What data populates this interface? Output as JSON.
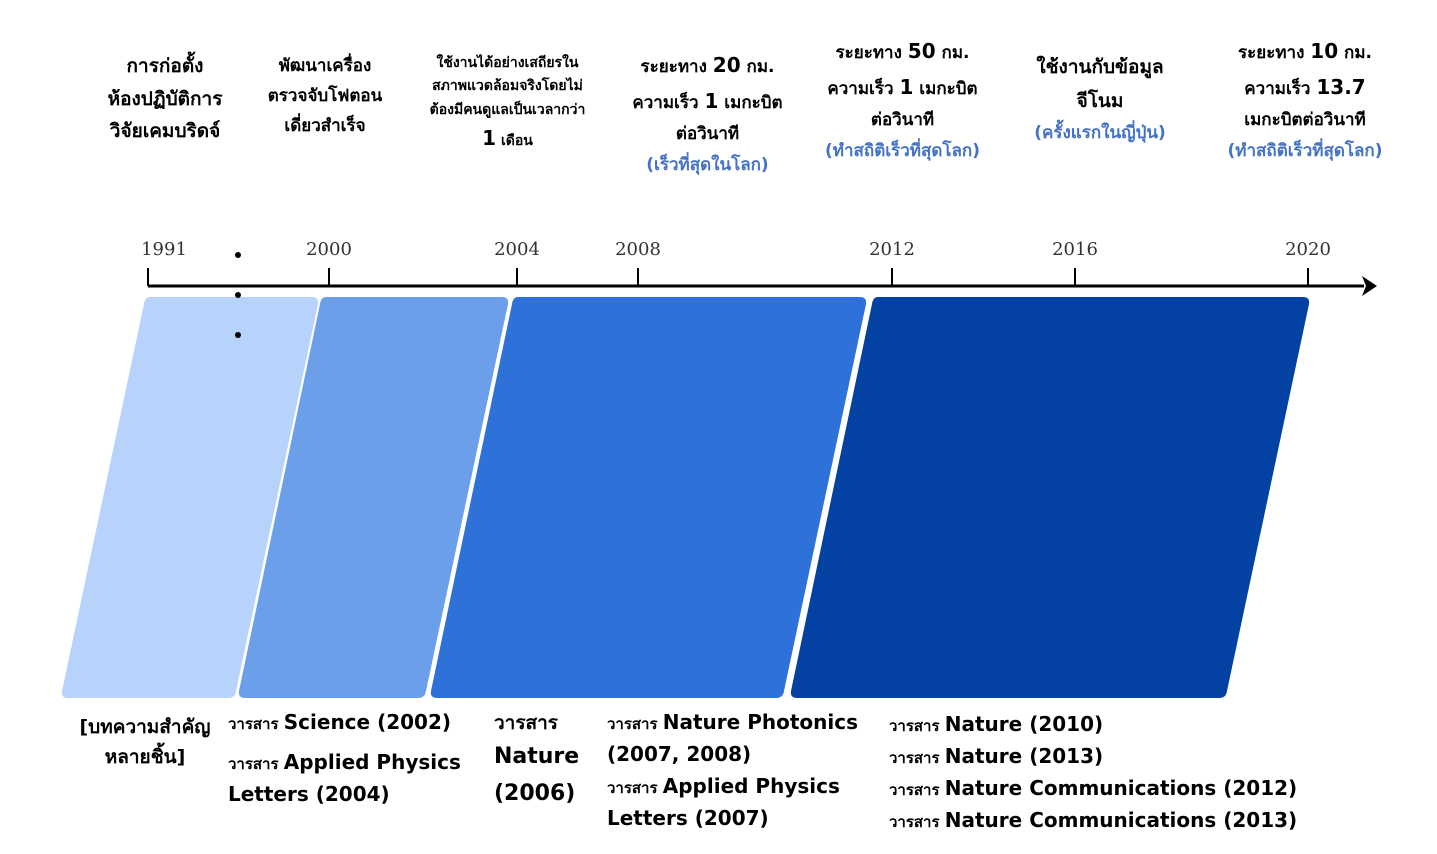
{
  "milestones": [
    {
      "lines": [
        "การก่อตั้ง",
        "ห้องปฏิบัติการ",
        "วิจัยเคมบริดจ์"
      ]
    },
    {
      "lines": [
        "พัฒนาเครื่อง",
        "ตรวจจับโฟตอน",
        "เดี่ยวสำเร็จ"
      ]
    },
    {
      "lines": [
        "ใช้งานได้อย่างเสถียรใน",
        "สภาพแวดล้อมจริงโดยไม่",
        "ต้องมีคนดูแลเป็นเวลากว่า"
      ],
      "last_num": "1",
      "last_text": " เดือน"
    },
    {
      "l1a": "ระยะทาง ",
      "l1b": "20",
      "l1c": " กม.",
      "l2a": "ความเร็ว ",
      "l2b": "1",
      "l2c": " เมกะบิต",
      "l3": "ต่อวินาที",
      "note": "(เร็วที่สุดในโลก)"
    },
    {
      "l1a": "ระยะทาง ",
      "l1b": "50",
      "l1c": " กม.",
      "l2a": "ความเร็ว ",
      "l2b": "1",
      "l2c": " เมกะบิต",
      "l3": "ต่อวินาที",
      "note": "(ทำสถิติเร็วที่สุดโลก)"
    },
    {
      "lines": [
        "ใช้งานกับข้อมูล",
        "จีโนม"
      ],
      "note": "(ครั้งแรกในญี่ปุ่น)"
    },
    {
      "l1a": "ระยะทาง ",
      "l1b": "10",
      "l1c": " กม.",
      "l2a": "ความเร็ว ",
      "l2b": "13.7",
      "l3": "เมกะบิตต่อวินาที",
      "note": "(ทำสถิติเร็วที่สุดโลก)"
    }
  ],
  "timeline": {
    "years": [
      "1991",
      "2000",
      "2004",
      "2008",
      "2012",
      "2016",
      "2020"
    ],
    "colors": [
      "#b7d3fb",
      "#6c9fea",
      "#2e72d9",
      "#0341a3"
    ]
  },
  "publications": {
    "p1": [
      "[บทความสำคัญ",
      "หลายชิ้น]"
    ],
    "prefix": "วารสาร ",
    "p2": {
      "a": "Science (2002)",
      "b1": "Applied Physics",
      "b2": "Letters (2004)"
    },
    "p3": {
      "pre": "วารสาร",
      "l1": "Nature",
      "l2": "(2006)"
    },
    "p4": {
      "a1": "Nature Photonics",
      "a2": "(2007, 2008)",
      "b1": "Applied Physics",
      "b2": "Letters (2007)"
    },
    "p5": [
      "Nature (2010)",
      "Nature (2013)",
      "Nature Communications (2012)",
      "Nature Communications (2013)"
    ]
  }
}
